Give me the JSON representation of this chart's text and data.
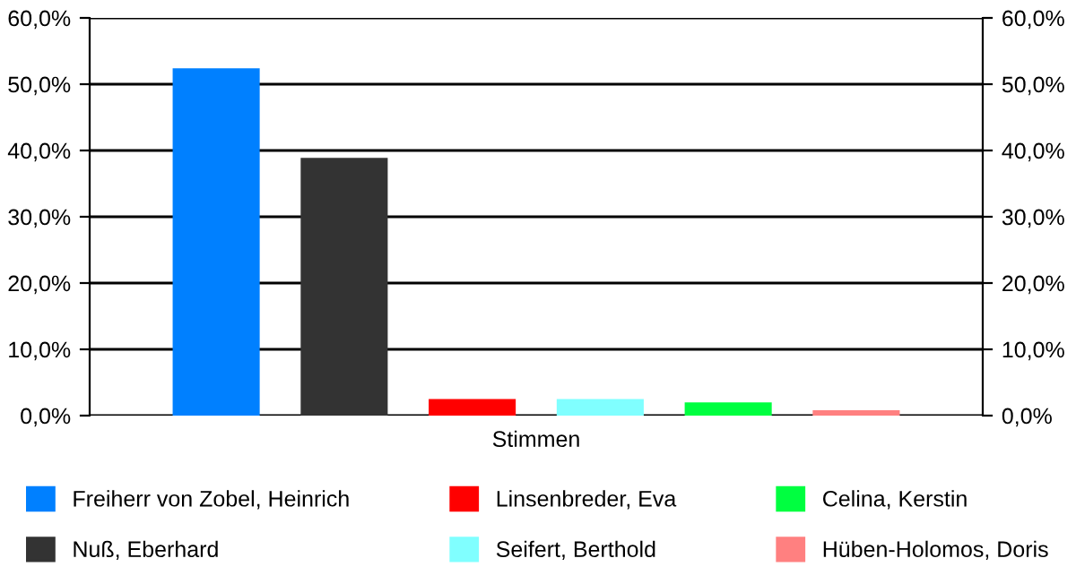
{
  "chart_data": {
    "type": "bar",
    "categories": [
      "Stimmen"
    ],
    "series": [
      {
        "name": "Freiherr von Zobel, Heinrich",
        "color": "#0080ff",
        "values": [
          52.4
        ]
      },
      {
        "name": "Nuß, Eberhard",
        "color": "#333333",
        "values": [
          38.9
        ]
      },
      {
        "name": "Linsenbreder, Eva",
        "color": "#ff0000",
        "values": [
          2.5
        ]
      },
      {
        "name": "Seifert, Berthold",
        "color": "#80ffff",
        "values": [
          2.5
        ]
      },
      {
        "name": "Celina, Kerstin",
        "color": "#00ff40",
        "values": [
          2.0
        ]
      },
      {
        "name": "Hüben-Holomos, Doris",
        "color": "#ff8080",
        "values": [
          0.8
        ]
      }
    ],
    "ylim": [
      0,
      60
    ],
    "yticks": [
      {
        "value": 0,
        "label": "0,0%"
      },
      {
        "value": 10,
        "label": "10,0%"
      },
      {
        "value": 20,
        "label": "20,0%"
      },
      {
        "value": 30,
        "label": "30,0%"
      },
      {
        "value": 40,
        "label": "40,0%"
      },
      {
        "value": 50,
        "label": "50,0%"
      },
      {
        "value": 60,
        "label": "60,0%"
      }
    ],
    "grid": "y",
    "legend": "bottom"
  }
}
